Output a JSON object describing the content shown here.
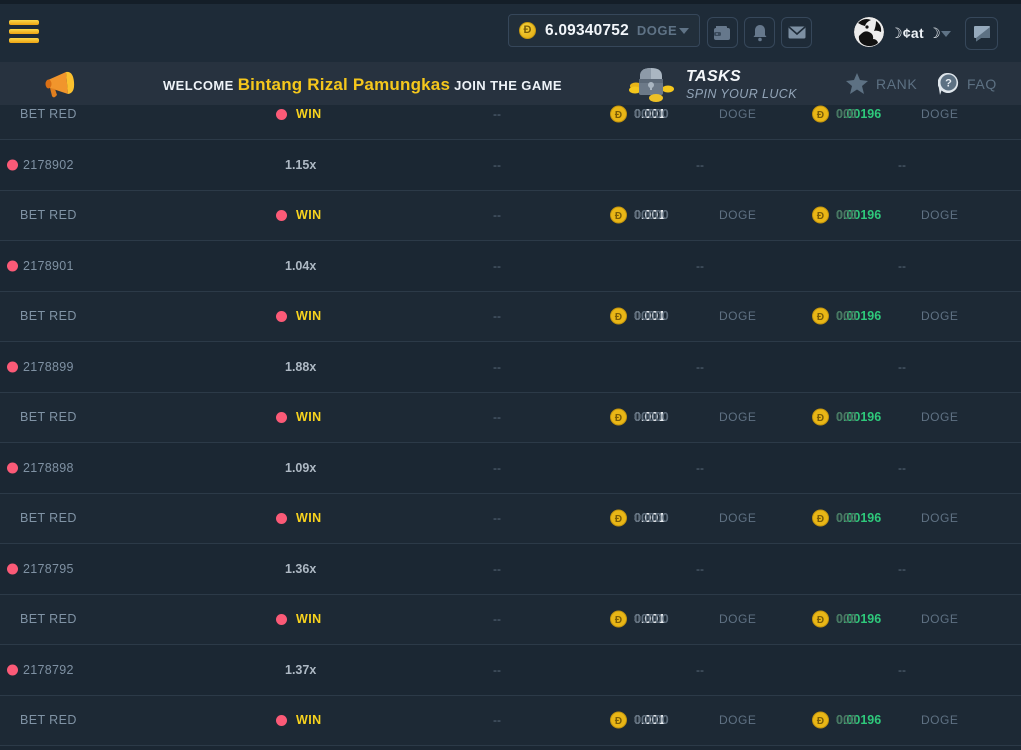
{
  "header": {
    "balance": {
      "amount": "6.09340752",
      "currency": "DOGE",
      "coin_symbol": "Ð"
    },
    "icons": [
      "hamburger-menu",
      "wallet",
      "bell",
      "mail",
      "chat"
    ],
    "user_name": "☽¢at ☽"
  },
  "banner": {
    "welcome_prefix": "WELCOME ",
    "player_name": "Bintang Rizal Pamungkas",
    "welcome_suffix": " JOIN THE GAME",
    "tasks_title": "TASKS",
    "tasks_subtitle": "SPIN YOUR LUCK",
    "rank_label": "RANK",
    "faq_label": "FAQ",
    "faq_icon_glyph": "?"
  },
  "bets_table": {
    "dash": "--",
    "coin_symbol": "Ð",
    "rows": [
      {
        "type": "bet",
        "label": "BET RED",
        "result": "WIN",
        "amount_main": "0.001",
        "amount_dim": "00000",
        "amount_currency": "DOGE",
        "payout_main": "0.00196",
        "payout_dim": "000",
        "payout_currency": "DOGE"
      },
      {
        "type": "round",
        "round_id": "2178902",
        "multiplier": "1.15x"
      },
      {
        "type": "bet",
        "label": "BET RED",
        "result": "WIN",
        "amount_main": "0.001",
        "amount_dim": "00000",
        "amount_currency": "DOGE",
        "payout_main": "0.00196",
        "payout_dim": "000",
        "payout_currency": "DOGE"
      },
      {
        "type": "round",
        "round_id": "2178901",
        "multiplier": "1.04x"
      },
      {
        "type": "bet",
        "label": "BET RED",
        "result": "WIN",
        "amount_main": "0.001",
        "amount_dim": "00000",
        "amount_currency": "DOGE",
        "payout_main": "0.00196",
        "payout_dim": "000",
        "payout_currency": "DOGE"
      },
      {
        "type": "round",
        "round_id": "2178899",
        "multiplier": "1.88x"
      },
      {
        "type": "bet",
        "label": "BET RED",
        "result": "WIN",
        "amount_main": "0.001",
        "amount_dim": "00000",
        "amount_currency": "DOGE",
        "payout_main": "0.00196",
        "payout_dim": "000",
        "payout_currency": "DOGE"
      },
      {
        "type": "round",
        "round_id": "2178898",
        "multiplier": "1.09x"
      },
      {
        "type": "bet",
        "label": "BET RED",
        "result": "WIN",
        "amount_main": "0.001",
        "amount_dim": "00000",
        "amount_currency": "DOGE",
        "payout_main": "0.00196",
        "payout_dim": "000",
        "payout_currency": "DOGE"
      },
      {
        "type": "round",
        "round_id": "2178795",
        "multiplier": "1.36x"
      },
      {
        "type": "bet",
        "label": "BET RED",
        "result": "WIN",
        "amount_main": "0.001",
        "amount_dim": "00000",
        "amount_currency": "DOGE",
        "payout_main": "0.00196",
        "payout_dim": "000",
        "payout_currency": "DOGE"
      },
      {
        "type": "round",
        "round_id": "2178792",
        "multiplier": "1.37x"
      },
      {
        "type": "bet",
        "label": "BET RED",
        "result": "WIN",
        "amount_main": "0.001",
        "amount_dim": "00000",
        "amount_currency": "DOGE",
        "payout_main": "0.00196",
        "payout_dim": "000",
        "payout_currency": "DOGE"
      }
    ]
  },
  "colors": {
    "accent_yellow": "#f5c71c",
    "win_yellow": "#f7d21e",
    "loss_red_dot": "#fb5a77",
    "payout_green": "#2ec97b",
    "coin_gold": "#e9b616",
    "header_bg": "#1e2b38",
    "banner_bg": "#27323f"
  }
}
